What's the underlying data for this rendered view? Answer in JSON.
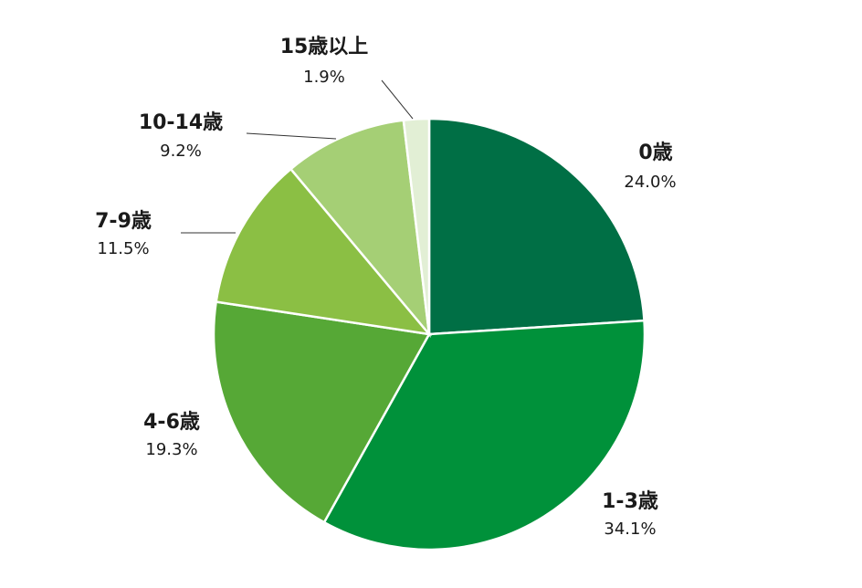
{
  "chart_data": {
    "type": "pie",
    "categories": [
      "0歳",
      "1-3歳",
      "4-6歳",
      "7-9歳",
      "10-14歳",
      "15歳以上"
    ],
    "values": [
      24.0,
      34.1,
      19.3,
      11.5,
      9.2,
      1.9
    ],
    "value_labels": [
      "24.0%",
      "34.1%",
      "19.3%",
      "11.5%",
      "9.2%",
      "1.9%"
    ],
    "colors": [
      "#006f45",
      "#00913a",
      "#56a836",
      "#8bbf44",
      "#a5cf75",
      "#e2efd5"
    ]
  }
}
